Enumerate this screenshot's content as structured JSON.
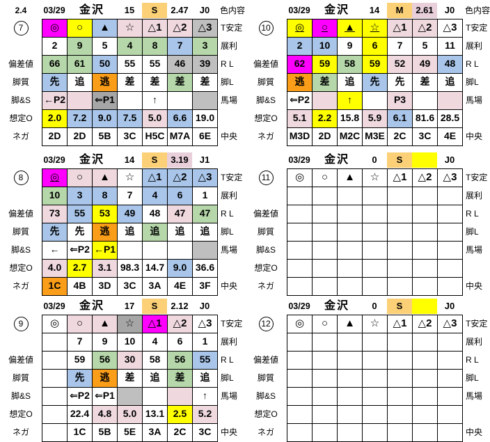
{
  "colors": {
    "magenta": "#FF00FF",
    "yellow": "#FFFF00",
    "blue": "#A9C6EA",
    "green": "#B5D7A9",
    "pink": "#EFD9DF",
    "pink2": "#E8CFDA",
    "orange": "#FA9D18",
    "amber": "#FBD077",
    "gray": "#BFBFBF",
    "darkgray": "#A6A6A6",
    "white": "#FFFFFF"
  },
  "labels": {
    "left": [
      "",
      "",
      "偏差値",
      "脚質",
      "脚&S",
      "想定O",
      "ネガ"
    ],
    "right": [
      "T安定",
      "展利",
      "R L",
      "脚L",
      "馬場",
      "",
      "中央"
    ],
    "top_right": "色内容"
  },
  "panels": [
    {
      "num": "7",
      "corner": "2.4",
      "top_label": "色内容",
      "header": {
        "date": "03/29",
        "track": "金沢",
        "count": "15",
        "pace": "S",
        "pace_bg": "amber",
        "odds": "2.47",
        "odds_bg": "",
        "j": "J0"
      },
      "rows": [
        [
          {
            "t": "◎",
            "bg": "magenta"
          },
          {
            "t": "○",
            "bg": "yellow"
          },
          {
            "t": "▲",
            "bg": "blue"
          },
          {
            "t": "☆",
            "bg": "pink"
          },
          {
            "t": "△1",
            "bg": "pink"
          },
          {
            "t": "△2",
            "bg": "pink"
          },
          {
            "t": "△3",
            "bg": "gray"
          }
        ],
        [
          {
            "t": "2"
          },
          {
            "t": "9",
            "bg": "green"
          },
          {
            "t": "5"
          },
          {
            "t": "4",
            "bg": "green"
          },
          {
            "t": "8",
            "bg": "green"
          },
          {
            "t": "7",
            "bg": "blue"
          },
          {
            "t": "3",
            "bg": "green"
          }
        ],
        [
          {
            "t": "66",
            "bg": "green"
          },
          {
            "t": "61",
            "bg": "green"
          },
          {
            "t": "50",
            "bg": "blue"
          },
          {
            "t": "55"
          },
          {
            "t": "55"
          },
          {
            "t": "46",
            "bg": "gray"
          },
          {
            "t": "39",
            "bg": "gray"
          }
        ],
        [
          {
            "t": "先",
            "bg": "blue"
          },
          {
            "t": "追"
          },
          {
            "t": "逃",
            "bg": "orange"
          },
          {
            "t": "差"
          },
          {
            "t": "差"
          },
          {
            "t": "差",
            "bg": "green"
          },
          {
            "t": "差"
          }
        ],
        [
          {
            "t": "←P2",
            "bg": "pink"
          },
          {
            "bg": "pink"
          },
          {
            "t": "⇐P1",
            "bg": "darkgray"
          },
          {},
          {
            "t": "↑"
          },
          {},
          {
            "bg": "gray"
          }
        ],
        [
          {
            "t": "2.0",
            "bg": "yellow"
          },
          {
            "t": "7.2",
            "bg": "blue"
          },
          {
            "t": "9.0",
            "bg": "blue"
          },
          {
            "t": "7.5",
            "bg": "blue"
          },
          {
            "t": "5.0",
            "bg": "pink"
          },
          {
            "t": "6.6",
            "bg": "blue"
          },
          {
            "t": "19.0"
          }
        ],
        [
          {
            "t": "2D"
          },
          {
            "t": "2D"
          },
          {
            "t": "5B"
          },
          {
            "t": "3C"
          },
          {
            "t": "H5C"
          },
          {
            "t": "M7A"
          },
          {
            "t": "6E"
          }
        ]
      ]
    },
    {
      "num": "10",
      "top_label": "色内容",
      "header": {
        "date": "03/29",
        "track": "金沢",
        "count": "14",
        "pace": "M",
        "pace_bg": "amber",
        "odds": "2.61",
        "odds_bg": "pink2",
        "j": "J0"
      },
      "rows": [
        [
          {
            "t": "◎",
            "bg": "yellow",
            "u": 1
          },
          {
            "t": "○",
            "bg": "magenta",
            "u": 1
          },
          {
            "t": "▲",
            "bg": "yellow",
            "u": 1
          },
          {
            "t": "☆",
            "bg": "yellow",
            "u": 1
          },
          {
            "t": "△1",
            "bg": "pink"
          },
          {
            "t": "△2",
            "bg": "pink"
          },
          {
            "t": "△3"
          }
        ],
        [
          {
            "t": "2",
            "bg": "blue"
          },
          {
            "t": "10",
            "bg": "blue"
          },
          {
            "t": "9"
          },
          {
            "t": "6",
            "bg": "yellow"
          },
          {
            "t": "7"
          },
          {
            "t": "5"
          },
          {
            "t": "11"
          }
        ],
        [
          {
            "t": "62",
            "bg": "magenta"
          },
          {
            "t": "59",
            "bg": "yellow"
          },
          {
            "t": "58",
            "bg": "green"
          },
          {
            "t": "59",
            "bg": "yellow"
          },
          {
            "t": "52",
            "bg": "pink"
          },
          {
            "t": "49",
            "bg": "pink"
          },
          {
            "t": "48",
            "bg": "blue"
          }
        ],
        [
          {
            "t": "逃",
            "bg": "orange"
          },
          {
            "t": "差",
            "bg": "green"
          },
          {
            "t": "追"
          },
          {
            "t": "先",
            "bg": "blue"
          },
          {
            "t": "先"
          },
          {
            "t": "差"
          },
          {
            "t": "追"
          }
        ],
        [
          {
            "t": "⇐P2"
          },
          {
            "bg": "pink"
          },
          {
            "t": "↑",
            "bg": "yellow"
          },
          {},
          {
            "t": "P3",
            "bg": "pink"
          },
          {},
          {
            "bg": "pink"
          }
        ],
        [
          {
            "t": "5.1",
            "bg": "pink"
          },
          {
            "t": "2.2",
            "bg": "yellow"
          },
          {
            "t": "15.8"
          },
          {
            "t": "5.9",
            "bg": "pink"
          },
          {
            "t": "6.1",
            "bg": "blue"
          },
          {
            "t": "81.6"
          },
          {
            "t": "28.5"
          }
        ],
        [
          {
            "t": "M3D"
          },
          {
            "t": "2D"
          },
          {
            "t": "M2C"
          },
          {
            "t": "M3E"
          },
          {
            "t": "2C"
          },
          {
            "t": "3C"
          },
          {
            "t": "4E"
          }
        ]
      ]
    },
    {
      "num": "8",
      "top_label": "",
      "header": {
        "date": "03/29",
        "track": "金沢",
        "count": "14",
        "pace": "S",
        "pace_bg": "amber",
        "odds": "3.19",
        "odds_bg": "pink2",
        "j": "J1"
      },
      "rows": [
        [
          {
            "t": "◎",
            "bg": "magenta",
            "u": 1
          },
          {
            "t": "○",
            "bg": "pink"
          },
          {
            "t": "▲",
            "bg": "pink"
          },
          {
            "t": "☆"
          },
          {
            "t": "△1",
            "bg": "blue"
          },
          {
            "t": "△2",
            "bg": "blue"
          },
          {
            "t": "△3",
            "bg": "blue"
          }
        ],
        [
          {
            "t": "10",
            "bg": "green"
          },
          {
            "t": "3",
            "bg": "blue"
          },
          {
            "t": "8",
            "bg": "blue"
          },
          {
            "t": "7"
          },
          {
            "t": "4",
            "bg": "blue"
          },
          {
            "t": "6",
            "bg": "blue"
          },
          {
            "t": "1"
          }
        ],
        [
          {
            "t": "73",
            "bg": "pink"
          },
          {
            "t": "55",
            "bg": "blue"
          },
          {
            "t": "53",
            "bg": "yellow"
          },
          {
            "t": "49",
            "bg": "blue"
          },
          {
            "t": "48"
          },
          {
            "t": "47",
            "bg": "pink"
          },
          {
            "t": "47",
            "bg": "green"
          }
        ],
        [
          {
            "t": "先",
            "bg": "blue"
          },
          {
            "t": "先"
          },
          {
            "t": "逃",
            "bg": "orange"
          },
          {
            "t": "追"
          },
          {
            "t": "追",
            "bg": "green"
          },
          {
            "t": "追"
          },
          {
            "t": "追"
          }
        ],
        [
          {
            "t": "←"
          },
          {
            "t": "⇐P2"
          },
          {
            "t": "←P1",
            "bg": "yellow"
          },
          {},
          {},
          {},
          {
            "bg": "gray"
          }
        ],
        [
          {
            "t": "4.0",
            "bg": "pink"
          },
          {
            "t": "2.7",
            "bg": "yellow"
          },
          {
            "t": "3.1",
            "bg": "pink"
          },
          {
            "t": "98.3"
          },
          {
            "t": "14.7"
          },
          {
            "t": "9.0",
            "bg": "blue"
          },
          {
            "t": "36.6"
          }
        ],
        [
          {
            "t": "1C",
            "bg": "orange"
          },
          {
            "t": "4B"
          },
          {
            "t": "3D"
          },
          {
            "t": "3C"
          },
          {
            "t": "3A"
          },
          {
            "t": "4E"
          },
          {
            "t": "3F"
          }
        ]
      ]
    },
    {
      "num": "11",
      "top_label": "",
      "header": {
        "date": "03/29",
        "track": "金沢",
        "count": "0",
        "pace": "S",
        "pace_bg": "amber",
        "odds": "",
        "odds_bg": "yellow",
        "j": "J0"
      },
      "rows": [
        [
          {
            "t": "◎"
          },
          {
            "t": "○"
          },
          {
            "t": "▲"
          },
          {
            "t": "☆"
          },
          {
            "t": "△1"
          },
          {
            "t": "△2"
          },
          {
            "t": "△3"
          }
        ],
        [],
        [],
        [],
        [],
        [],
        []
      ]
    },
    {
      "num": "9",
      "top_label": "",
      "header": {
        "date": "03/29",
        "track": "金沢",
        "count": "17",
        "pace": "S",
        "pace_bg": "amber",
        "odds": "2.12",
        "odds_bg": "",
        "j": "J0"
      },
      "rows": [
        [
          {
            "t": "◎"
          },
          {
            "t": "○",
            "bg": "pink"
          },
          {
            "t": "▲",
            "bg": "pink"
          },
          {
            "t": "☆",
            "bg": "darkgray"
          },
          {
            "t": "△1",
            "bg": "magenta"
          },
          {
            "t": "△2",
            "bg": "pink"
          },
          {
            "t": "△3"
          }
        ],
        [
          {},
          {
            "t": "7"
          },
          {
            "t": "9"
          },
          {
            "t": "10"
          },
          {
            "t": "4"
          },
          {
            "t": "6"
          },
          {
            "t": "1"
          }
        ],
        [
          {},
          {
            "t": "59"
          },
          {
            "t": "56",
            "bg": "green"
          },
          {
            "t": "30",
            "bg": "pink"
          },
          {
            "t": "58"
          },
          {
            "t": "56",
            "bg": "green"
          },
          {
            "t": "55",
            "bg": "blue"
          }
        ],
        [
          {},
          {
            "t": "先",
            "bg": "blue"
          },
          {
            "t": "逃",
            "bg": "orange"
          },
          {
            "t": "差"
          },
          {
            "t": "追"
          },
          {
            "t": "差",
            "bg": "green"
          },
          {
            "t": "追"
          }
        ],
        [
          {},
          {
            "t": "⇐P2"
          },
          {
            "t": "⇐P1"
          },
          {
            "bg": "gray"
          },
          {},
          {
            "bg": "pink"
          },
          {
            "t": "↑"
          }
        ],
        [
          {},
          {
            "t": "22.4"
          },
          {
            "t": "4.8",
            "bg": "pink"
          },
          {
            "t": "5.0",
            "bg": "pink"
          },
          {
            "t": "13.1"
          },
          {
            "t": "2.5",
            "bg": "yellow"
          },
          {
            "t": "5.2",
            "bg": "pink"
          }
        ],
        [
          {},
          {
            "t": "1C"
          },
          {
            "t": "5B"
          },
          {
            "t": "5E"
          },
          {
            "t": "3A"
          },
          {
            "t": "2C"
          },
          {
            "t": "3C"
          }
        ]
      ]
    },
    {
      "num": "12",
      "top_label": "",
      "header": {
        "date": "03/29",
        "track": "金沢",
        "count": "0",
        "pace": "S",
        "pace_bg": "amber",
        "odds": "",
        "odds_bg": "yellow",
        "j": "J0"
      },
      "rows": [
        [
          {
            "t": "◎"
          },
          {
            "t": "○"
          },
          {
            "t": "▲"
          },
          {
            "t": "☆"
          },
          {
            "t": "△1"
          },
          {
            "t": "△2"
          },
          {
            "t": "△3"
          }
        ],
        [],
        [],
        [],
        [],
        [],
        []
      ]
    }
  ]
}
